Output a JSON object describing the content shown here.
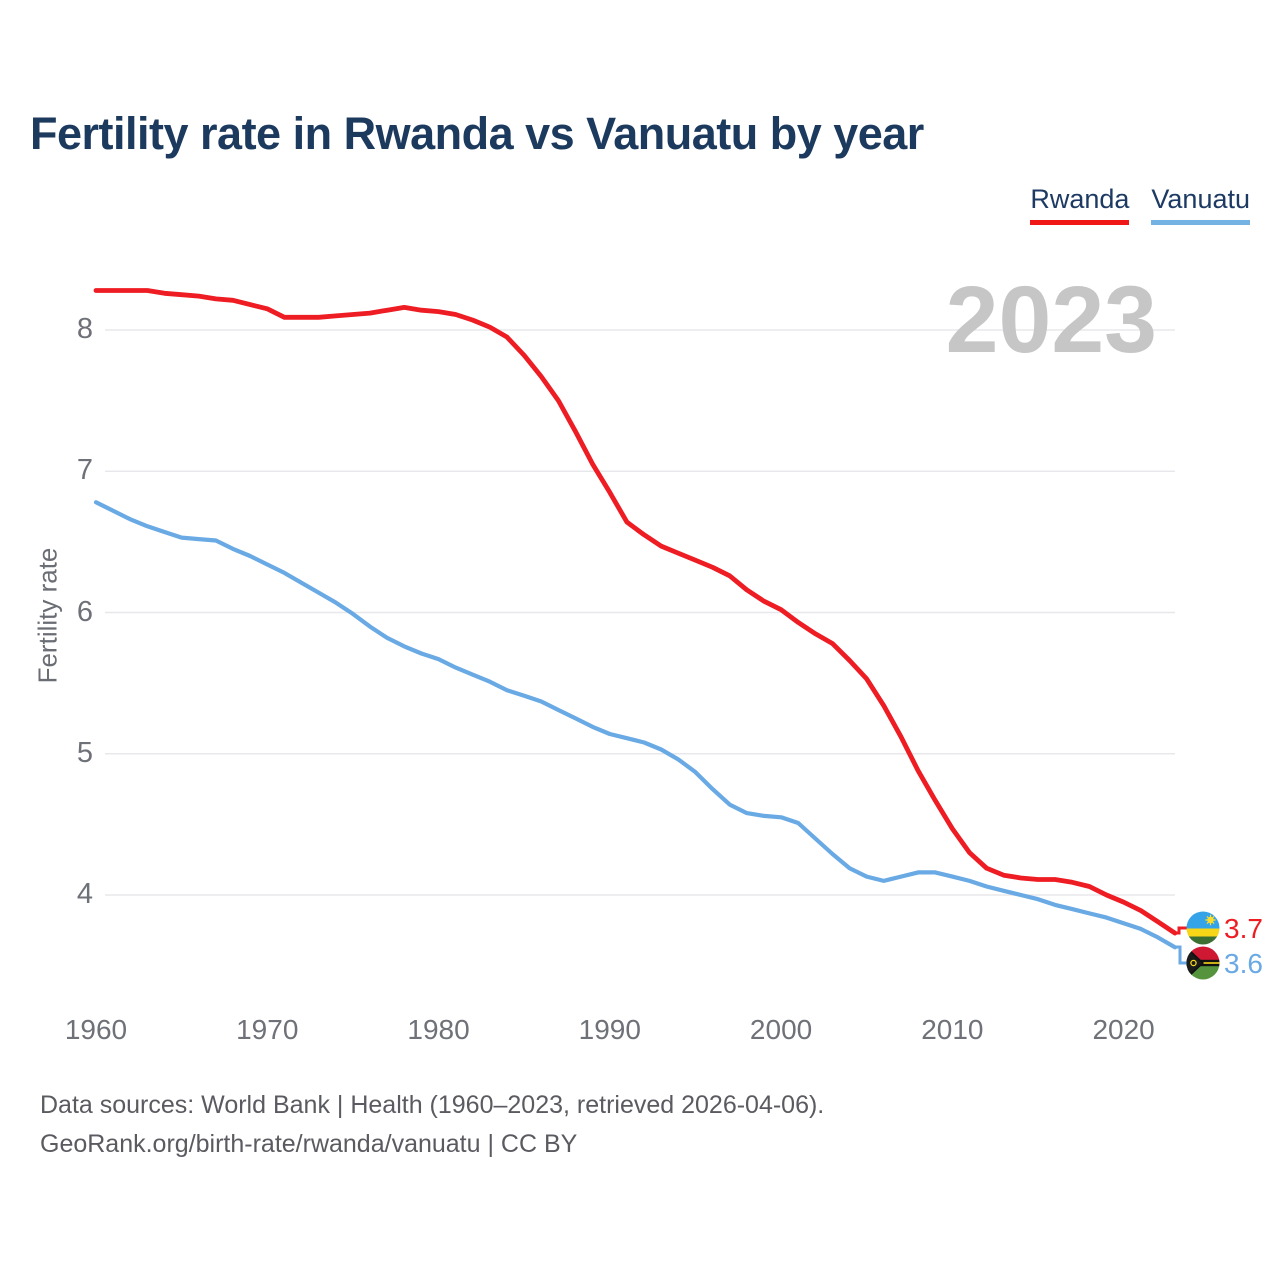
{
  "title": "Fertility rate in Rwanda vs Vanuatu by year",
  "watermark": "2023",
  "legend": {
    "items": [
      {
        "label": "Rwanda",
        "color": "#f01717"
      },
      {
        "label": "Vanuatu",
        "color": "#74b2e4"
      }
    ]
  },
  "y_axis": {
    "label": "Fertility rate",
    "ticks": [
      8,
      7,
      6,
      5,
      4
    ]
  },
  "x_axis": {
    "ticks": [
      1960,
      1970,
      1980,
      1990,
      2000,
      2010,
      2020
    ]
  },
  "end_labels": {
    "rwanda": {
      "value": "3.7",
      "flag": "rwanda-flag",
      "color": "#ee1c23"
    },
    "vanuatu": {
      "value": "3.6",
      "flag": "vanuatu-flag",
      "color": "#69a9e4"
    }
  },
  "footer": {
    "line1": "Data sources: World Bank | Health (1960–2023, retrieved 2026-04-06).",
    "line2": "GeoRank.org/birth-rate/rwanda/vanuatu | CC BY"
  },
  "chart_data": {
    "type": "line",
    "title": "Fertility rate in Rwanda vs Vanuatu by year",
    "xlabel": "",
    "ylabel": "Fertility rate",
    "xlim": [
      1960,
      2023
    ],
    "ylim": [
      3.4,
      8.6
    ],
    "grid": "horizontal",
    "legend_position": "top-right",
    "x": [
      1960,
      1961,
      1962,
      1963,
      1964,
      1965,
      1966,
      1967,
      1968,
      1969,
      1970,
      1971,
      1972,
      1973,
      1974,
      1975,
      1976,
      1977,
      1978,
      1979,
      1980,
      1981,
      1982,
      1983,
      1984,
      1985,
      1986,
      1987,
      1988,
      1989,
      1990,
      1991,
      1992,
      1993,
      1994,
      1995,
      1996,
      1997,
      1998,
      1999,
      2000,
      2001,
      2002,
      2003,
      2004,
      2005,
      2006,
      2007,
      2008,
      2009,
      2010,
      2011,
      2012,
      2013,
      2014,
      2015,
      2016,
      2017,
      2018,
      2019,
      2020,
      2021,
      2022,
      2023
    ],
    "series": [
      {
        "name": "Rwanda",
        "color": "#ee1c23",
        "values": [
          8.28,
          8.28,
          8.28,
          8.28,
          8.26,
          8.25,
          8.24,
          8.22,
          8.21,
          8.18,
          8.15,
          8.09,
          8.09,
          8.09,
          8.1,
          8.11,
          8.12,
          8.14,
          8.16,
          8.14,
          8.13,
          8.11,
          8.07,
          8.02,
          7.95,
          7.82,
          7.67,
          7.5,
          7.28,
          7.05,
          6.85,
          6.64,
          6.55,
          6.47,
          6.42,
          6.37,
          6.32,
          6.26,
          6.16,
          6.08,
          6.02,
          5.93,
          5.85,
          5.78,
          5.66,
          5.53,
          5.34,
          5.12,
          4.88,
          4.67,
          4.47,
          4.3,
          4.19,
          4.14,
          4.12,
          4.11,
          4.11,
          4.09,
          4.06,
          4.0,
          3.95,
          3.89,
          3.81,
          3.73
        ]
      },
      {
        "name": "Vanuatu",
        "color": "#69a9e4",
        "values": [
          6.78,
          6.72,
          6.66,
          6.61,
          6.57,
          6.53,
          6.52,
          6.51,
          6.45,
          6.4,
          6.34,
          6.28,
          6.21,
          6.14,
          6.07,
          5.99,
          5.9,
          5.82,
          5.76,
          5.71,
          5.67,
          5.61,
          5.56,
          5.51,
          5.45,
          5.41,
          5.37,
          5.31,
          5.25,
          5.19,
          5.14,
          5.11,
          5.08,
          5.03,
          4.96,
          4.87,
          4.75,
          4.64,
          4.58,
          4.56,
          4.55,
          4.51,
          4.4,
          4.29,
          4.19,
          4.13,
          4.1,
          4.13,
          4.16,
          4.16,
          4.13,
          4.1,
          4.06,
          4.03,
          4.0,
          3.97,
          3.93,
          3.9,
          3.87,
          3.84,
          3.8,
          3.76,
          3.7,
          3.63
        ]
      }
    ]
  }
}
